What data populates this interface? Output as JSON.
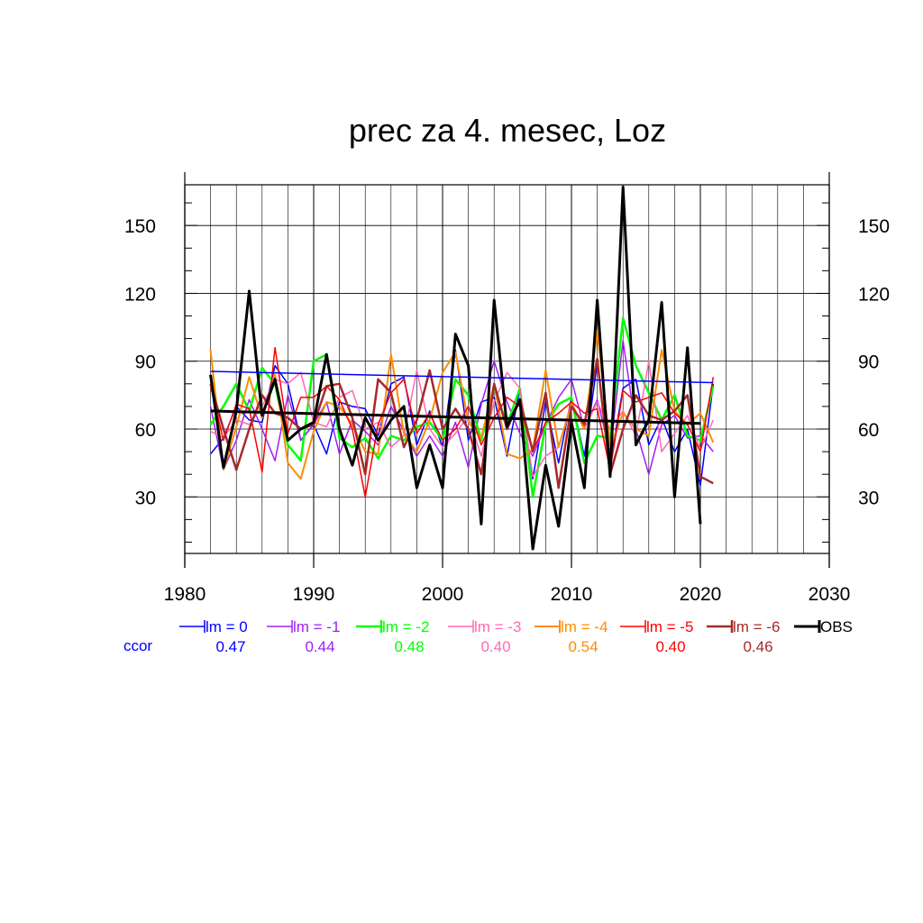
{
  "chart_data": {
    "type": "line",
    "title": "prec za 4. mesec, Loz",
    "xlabel": "",
    "ylabel": "",
    "xlim": [
      1980,
      2030
    ],
    "ylim": [
      5,
      168
    ],
    "xticks": [
      1980,
      1990,
      2000,
      2010,
      2020,
      2030
    ],
    "yticks": [
      30,
      60,
      90,
      120,
      150
    ],
    "xtick_labels": [
      "1980",
      "1990",
      "2000",
      "2010",
      "2020",
      "2030"
    ],
    "ytick_labels": [
      "30",
      "60",
      "90",
      "120",
      "150"
    ],
    "grid": true,
    "legend_position": "bottom",
    "ccor_label": "ccor",
    "series": [
      {
        "name": "lm = 0",
        "color": "#0000ff",
        "ccor": "0.47",
        "width": 1.5,
        "x": [
          1982,
          1983,
          1984,
          1985,
          1986,
          1987,
          1988,
          1989,
          1990,
          1991,
          1992,
          1993,
          1994,
          1995,
          1996,
          1997,
          1998,
          1999,
          2000,
          2001,
          2002,
          2003,
          2004,
          2005,
          2006,
          2007,
          2008,
          2009,
          2010,
          2011,
          2012,
          2013,
          2014,
          2015,
          2016,
          2017,
          2018,
          2019,
          2020,
          2021
        ],
        "values": [
          49,
          56,
          70,
          64,
          63,
          88,
          80,
          55,
          62,
          49,
          72,
          70,
          69,
          57,
          80,
          83,
          53,
          68,
          52,
          95,
          55,
          72,
          74,
          48,
          78,
          38,
          72,
          45,
          74,
          48,
          89,
          45,
          78,
          82,
          53,
          65,
          50,
          60,
          35,
          80
        ]
      },
      {
        "name": "lm = -1",
        "color": "#a020f0",
        "ccor": "0.44",
        "width": 1.5,
        "x": [
          1982,
          1983,
          1984,
          1985,
          1986,
          1987,
          1988,
          1989,
          1990,
          1991,
          1992,
          1993,
          1994,
          1995,
          1996,
          1997,
          1998,
          1999,
          2000,
          2001,
          2002,
          2003,
          2004,
          2005,
          2006,
          2007,
          2008,
          2009,
          2010,
          2011,
          2012,
          2013,
          2014,
          2015,
          2016,
          2017,
          2018,
          2019,
          2020,
          2021
        ],
        "values": [
          70,
          42,
          55,
          73,
          60,
          46,
          75,
          55,
          62,
          72,
          49,
          64,
          59,
          53,
          70,
          59,
          48,
          57,
          48,
          63,
          43,
          71,
          90,
          72,
          58,
          48,
          62,
          74,
          82,
          60,
          73,
          50,
          99,
          60,
          40,
          62,
          66,
          56,
          57,
          50
        ]
      },
      {
        "name": "lm = -2",
        "color": "#00ff00",
        "ccor": "0.48",
        "width": 2.5,
        "x": [
          1982,
          1983,
          1984,
          1985,
          1986,
          1987,
          1988,
          1989,
          1990,
          1991,
          1992,
          1993,
          1994,
          1995,
          1996,
          1997,
          1998,
          1999,
          2000,
          2001,
          2002,
          2003,
          2004,
          2005,
          2006,
          2007,
          2008,
          2009,
          2010,
          2011,
          2012,
          2013,
          2014,
          2015,
          2016,
          2017,
          2018,
          2019,
          2020,
          2021
        ],
        "values": [
          62,
          70,
          80,
          68,
          87,
          80,
          53,
          46,
          90,
          93,
          56,
          52,
          56,
          47,
          57,
          55,
          61,
          63,
          55,
          82,
          75,
          55,
          78,
          62,
          78,
          30,
          62,
          71,
          74,
          45,
          57,
          56,
          109,
          88,
          76,
          64,
          75,
          57,
          55,
          79
        ]
      },
      {
        "name": "lm = -3",
        "color": "#ff69b4",
        "ccor": "0.40",
        "width": 1.5,
        "x": [
          1982,
          1983,
          1984,
          1985,
          1986,
          1987,
          1988,
          1989,
          1990,
          1991,
          1992,
          1993,
          1994,
          1995,
          1996,
          1997,
          1998,
          1999,
          2000,
          2001,
          2002,
          2003,
          2004,
          2005,
          2006,
          2007,
          2008,
          2009,
          2010,
          2011,
          2012,
          2013,
          2014,
          2015,
          2016,
          2017,
          2018,
          2019,
          2020,
          2021
        ],
        "values": [
          59,
          56,
          64,
          62,
          70,
          82,
          80,
          85,
          63,
          61,
          74,
          77,
          60,
          63,
          52,
          57,
          86,
          60,
          52,
          58,
          66,
          48,
          72,
          85,
          78,
          39,
          48,
          52,
          72,
          60,
          72,
          60,
          68,
          57,
          90,
          50,
          58,
          66,
          51,
          64
        ]
      },
      {
        "name": "lm = -4",
        "color": "#ff8c00",
        "ccor": "0.54",
        "width": 2.0,
        "x": [
          1982,
          1983,
          1984,
          1985,
          1986,
          1987,
          1988,
          1989,
          1990,
          1991,
          1992,
          1993,
          1994,
          1995,
          1996,
          1997,
          1998,
          1999,
          2000,
          2001,
          2002,
          2003,
          2004,
          2005,
          2006,
          2007,
          2008,
          2009,
          2010,
          2011,
          2012,
          2013,
          2014,
          2015,
          2016,
          2017,
          2018,
          2019,
          2020,
          2021
        ],
        "values": [
          95,
          42,
          61,
          83,
          65,
          84,
          45,
          38,
          59,
          72,
          70,
          62,
          50,
          49,
          93,
          58,
          50,
          64,
          85,
          94,
          63,
          56,
          80,
          49,
          47,
          51,
          86,
          52,
          71,
          60,
          103,
          52,
          67,
          60,
          57,
          95,
          68,
          62,
          67,
          54
        ]
      },
      {
        "name": "lm = -5",
        "color": "#ff0000",
        "ccor": "0.40",
        "width": 1.5,
        "x": [
          1982,
          1983,
          1984,
          1985,
          1986,
          1987,
          1988,
          1989,
          1990,
          1991,
          1992,
          1993,
          1994,
          1995,
          1996,
          1997,
          1998,
          1999,
          2000,
          2001,
          2002,
          2003,
          2004,
          2005,
          2006,
          2007,
          2008,
          2009,
          2010,
          2011,
          2012,
          2013,
          2014,
          2015,
          2016,
          2017,
          2018,
          2019,
          2020,
          2021
        ],
        "values": [
          79,
          55,
          71,
          69,
          41,
          96,
          58,
          74,
          74,
          79,
          73,
          60,
          30,
          62,
          76,
          82,
          58,
          67,
          55,
          60,
          70,
          53,
          65,
          74,
          70,
          50,
          63,
          67,
          72,
          67,
          69,
          42,
          77,
          72,
          74,
          76,
          67,
          62,
          50,
          83
        ]
      },
      {
        "name": "lm = -6",
        "color": "#a52a2a",
        "ccor": "0.46",
        "width": 2.5,
        "x": [
          1982,
          1983,
          1984,
          1985,
          1986,
          1987,
          1988,
          1989,
          1990,
          1991,
          1992,
          1993,
          1994,
          1995,
          1996,
          1997,
          1998,
          1999,
          2000,
          2001,
          2002,
          2003,
          2004,
          2005,
          2006,
          2007,
          2008,
          2009,
          2010,
          2011,
          2012,
          2013,
          2014,
          2015,
          2016,
          2017,
          2018,
          2019,
          2020,
          2021
        ],
        "values": [
          80,
          60,
          42,
          60,
          75,
          67,
          65,
          60,
          62,
          79,
          80,
          65,
          40,
          82,
          76,
          52,
          64,
          86,
          60,
          69,
          60,
          40,
          80,
          60,
          73,
          50,
          76,
          34,
          70,
          62,
          91,
          40,
          60,
          75,
          66,
          64,
          68,
          75,
          39,
          36
        ]
      },
      {
        "name": "OBS",
        "color": "#000000",
        "ccor": "",
        "width": 3.0,
        "x": [
          1982,
          1983,
          1984,
          1985,
          1986,
          1987,
          1988,
          1989,
          1990,
          1991,
          1992,
          1993,
          1994,
          1995,
          1996,
          1997,
          1998,
          1999,
          2000,
          2001,
          2002,
          2003,
          2004,
          2005,
          2006,
          2007,
          2008,
          2009,
          2010,
          2011,
          2012,
          2013,
          2014,
          2015,
          2016,
          2017,
          2018,
          2019,
          2020
        ],
        "values": [
          84,
          43,
          68,
          121,
          66,
          82,
          55,
          60,
          63,
          93,
          60,
          44,
          65,
          55,
          64,
          70,
          34,
          53,
          34,
          102,
          88,
          18,
          117,
          61,
          73,
          7,
          44,
          17,
          63,
          34,
          117,
          39,
          167,
          53,
          64,
          116,
          30,
          96,
          18
        ]
      }
    ],
    "trend_lines": [
      {
        "color": "#0000ff",
        "width": 1.5,
        "x": [
          1982,
          2021
        ],
        "values": [
          85.5,
          80.5
        ]
      },
      {
        "color": "#000000",
        "width": 3.0,
        "x": [
          1982,
          2020
        ],
        "values": [
          68,
          62.5
        ]
      }
    ]
  }
}
